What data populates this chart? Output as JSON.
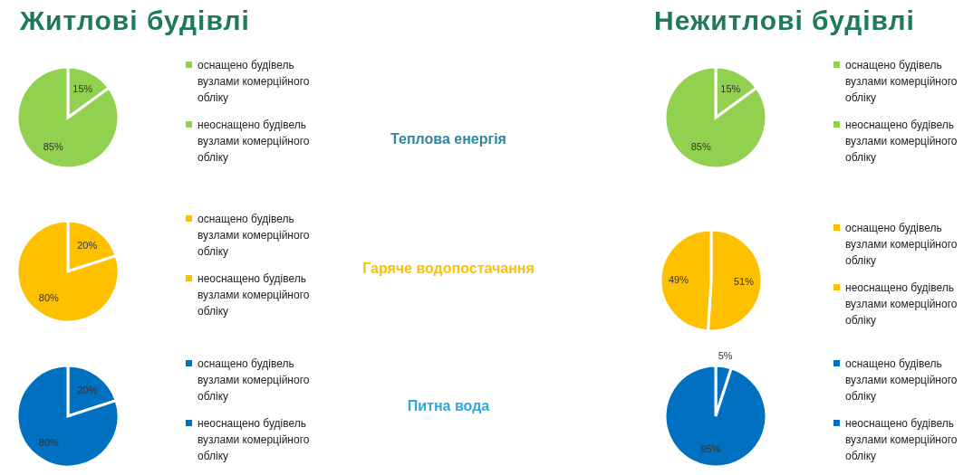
{
  "chart_data": [
    {
      "type": "pie",
      "title": "Житлові будівлі",
      "annotations": [
        "Теплова енергія"
      ],
      "categories": [
        "оснащено будівель вузлами комерційного обліку",
        "неоснащено будівель вузлами комерційного обліку"
      ],
      "values": [
        15,
        85
      ],
      "value_labels": [
        "15%",
        "85%"
      ],
      "colors": [
        "#92d050",
        "#92d050"
      ],
      "legend": "right"
    },
    {
      "type": "pie",
      "title": "Нежитлові будівлі",
      "categories": [
        "оснащено будівель вузлами комерційного обліку",
        "неоснащено будівель вузлами комерційного обліку"
      ],
      "values": [
        15,
        85
      ],
      "value_labels": [
        "15%",
        "85%"
      ],
      "colors": [
        "#92d050",
        "#92d050"
      ],
      "legend": "right"
    },
    {
      "type": "pie",
      "annotations": [
        "Гаряче водопостачання"
      ],
      "categories": [
        "оснащено будівель вузлами комерційного обліку",
        "неоснащено будівель вузлами комерційного обліку"
      ],
      "values": [
        20,
        80
      ],
      "value_labels": [
        "20%",
        "80%"
      ],
      "colors": [
        "#ffc000",
        "#ffc000"
      ],
      "legend": "right"
    },
    {
      "type": "pie",
      "categories": [
        "оснащено будівель вузлами комерційного обліку",
        "неоснащено будівель вузлами комерційного обліку"
      ],
      "values": [
        51,
        49
      ],
      "value_labels": [
        "51%",
        "49%"
      ],
      "colors": [
        "#ffc000",
        "#ffc000"
      ],
      "legend": "right"
    },
    {
      "type": "pie",
      "annotations": [
        "Питна вода"
      ],
      "categories": [
        "оснащено будівель вузлами комерційного обліку",
        "неоснащено будівель вузлами комерційного обліку"
      ],
      "values": [
        20,
        80
      ],
      "value_labels": [
        "20%",
        "80%"
      ],
      "colors": [
        "#0070c0",
        "#0070c0"
      ],
      "legend": "right"
    },
    {
      "type": "pie",
      "categories": [
        "оснащено будівель вузлами комерційного обліку",
        "неоснащено будівель вузлами комерційного обліку"
      ],
      "values": [
        5,
        95
      ],
      "value_labels": [
        "5%",
        "95%"
      ],
      "colors": [
        "#0070c0",
        "#0070c0"
      ],
      "legend": "right"
    }
  ]
}
